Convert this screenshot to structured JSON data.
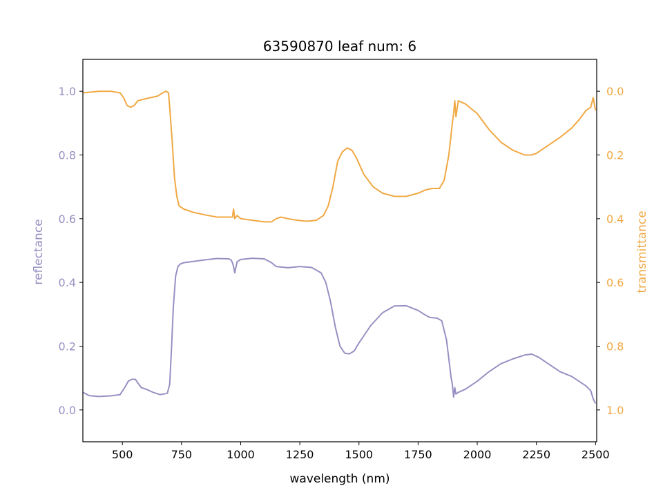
{
  "chart_data": {
    "type": "line",
    "title": "63590870 leaf num: 6",
    "xlabel": "wavelength (nm)",
    "ylabel_left": "reflectance",
    "ylabel_right": "transmittance",
    "xlim": [
      333,
      2505
    ],
    "ylim_left": [
      -0.1,
      1.1
    ],
    "ylim_right": [
      1.1,
      -0.1
    ],
    "right_axis_inverted": true,
    "x_ticks": [
      "500",
      "750",
      "1000",
      "1250",
      "1500",
      "1750",
      "2000",
      "2250",
      "2500"
    ],
    "y_ticks_left": [
      "0.0",
      "0.2",
      "0.4",
      "0.6",
      "0.8",
      "1.0"
    ],
    "y_ticks_right": [
      "0.0",
      "0.2",
      "0.4",
      "0.6",
      "0.8",
      "1.0"
    ],
    "grid": false,
    "colors": {
      "reflectance": "#9690c2",
      "transmittance": "#f0a843",
      "axes": "#000000"
    },
    "series": [
      {
        "name": "reflectance",
        "axis": "left",
        "x": [
          333,
          360,
          400,
          450,
          490,
          510,
          525,
          540,
          555,
          565,
          580,
          600,
          630,
          660,
          690,
          700,
          708,
          715,
          725,
          735,
          745,
          760,
          800,
          850,
          900,
          950,
          960,
          965,
          970,
          975,
          985,
          1000,
          1050,
          1100,
          1130,
          1150,
          1200,
          1250,
          1300,
          1340,
          1360,
          1380,
          1400,
          1420,
          1440,
          1460,
          1480,
          1500,
          1550,
          1600,
          1650,
          1700,
          1750,
          1780,
          1800,
          1830,
          1850,
          1870,
          1890,
          1895,
          1900,
          1905,
          1910,
          1920,
          1950,
          2000,
          2050,
          2100,
          2150,
          2200,
          2230,
          2260,
          2300,
          2350,
          2400,
          2430,
          2460,
          2480,
          2490,
          2500
        ],
        "y": [
          0.055,
          0.045,
          0.042,
          0.044,
          0.048,
          0.07,
          0.09,
          0.096,
          0.096,
          0.085,
          0.07,
          0.065,
          0.055,
          0.048,
          0.052,
          0.08,
          0.2,
          0.32,
          0.42,
          0.45,
          0.458,
          0.462,
          0.466,
          0.471,
          0.475,
          0.474,
          0.47,
          0.462,
          0.45,
          0.43,
          0.465,
          0.472,
          0.476,
          0.474,
          0.462,
          0.45,
          0.446,
          0.45,
          0.447,
          0.43,
          0.4,
          0.34,
          0.26,
          0.2,
          0.178,
          0.176,
          0.185,
          0.21,
          0.265,
          0.305,
          0.326,
          0.327,
          0.312,
          0.298,
          0.29,
          0.288,
          0.28,
          0.22,
          0.1,
          0.08,
          0.04,
          0.07,
          0.05,
          0.055,
          0.065,
          0.09,
          0.12,
          0.145,
          0.16,
          0.172,
          0.175,
          0.165,
          0.145,
          0.12,
          0.105,
          0.09,
          0.075,
          0.06,
          0.035,
          0.02
        ]
      },
      {
        "name": "transmittance",
        "axis": "right",
        "x": [
          333,
          360,
          400,
          450,
          490,
          505,
          520,
          535,
          550,
          565,
          590,
          620,
          650,
          670,
          685,
          695,
          700,
          710,
          720,
          730,
          740,
          760,
          800,
          850,
          900,
          950,
          965,
          970,
          975,
          985,
          1000,
          1050,
          1100,
          1130,
          1150,
          1170,
          1200,
          1240,
          1280,
          1320,
          1350,
          1370,
          1390,
          1410,
          1430,
          1450,
          1470,
          1490,
          1520,
          1560,
          1600,
          1650,
          1700,
          1750,
          1780,
          1810,
          1840,
          1860,
          1880,
          1895,
          1900,
          1905,
          1910,
          1920,
          1950,
          2000,
          2050,
          2100,
          2150,
          2200,
          2230,
          2250,
          2300,
          2350,
          2400,
          2430,
          2460,
          2480,
          2490,
          2500
        ],
        "y": [
          0.005,
          0.003,
          0.0,
          0.0,
          0.005,
          0.02,
          0.045,
          0.05,
          0.045,
          0.03,
          0.025,
          0.02,
          0.015,
          0.005,
          0.0,
          0.005,
          0.05,
          0.15,
          0.27,
          0.33,
          0.36,
          0.37,
          0.38,
          0.388,
          0.395,
          0.395,
          0.395,
          0.37,
          0.4,
          0.39,
          0.4,
          0.405,
          0.41,
          0.41,
          0.4,
          0.395,
          0.4,
          0.405,
          0.408,
          0.405,
          0.39,
          0.36,
          0.3,
          0.22,
          0.19,
          0.178,
          0.185,
          0.21,
          0.26,
          0.3,
          0.32,
          0.33,
          0.33,
          0.32,
          0.31,
          0.305,
          0.305,
          0.28,
          0.2,
          0.1,
          0.07,
          0.03,
          0.08,
          0.03,
          0.04,
          0.07,
          0.12,
          0.16,
          0.185,
          0.2,
          0.2,
          0.195,
          0.17,
          0.145,
          0.115,
          0.09,
          0.06,
          0.05,
          0.02,
          0.06
        ]
      }
    ]
  }
}
